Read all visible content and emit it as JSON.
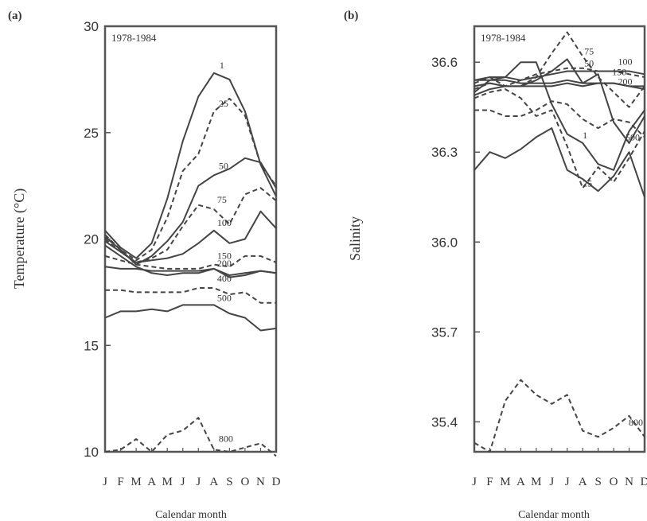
{
  "chart_data": [
    {
      "type": "line",
      "panel_label": "(a)",
      "inset_label": "1978-1984",
      "title": "",
      "xlabel": "Calendar month",
      "ylabel": "Temperature (°C)",
      "categories": [
        "J",
        "F",
        "M",
        "A",
        "M",
        "J",
        "J",
        "A",
        "S",
        "O",
        "N",
        "D"
      ],
      "yticks": [
        "10",
        "15",
        "20",
        "25",
        "30"
      ],
      "ylim": [
        10,
        30
      ],
      "series": [
        {
          "name": "1",
          "dashed": false,
          "values": [
            20.4,
            19.6,
            19.1,
            19.8,
            21.9,
            24.6,
            26.7,
            27.8,
            27.5,
            26.0,
            23.5,
            22.0
          ]
        },
        {
          "name": "25",
          "dashed": true,
          "values": [
            20.2,
            19.5,
            19.0,
            19.5,
            21.0,
            23.2,
            24.0,
            26.0,
            26.6,
            25.8,
            23.5,
            22.5
          ]
        },
        {
          "name": "50",
          "dashed": false,
          "values": [
            20.1,
            19.5,
            18.8,
            19.2,
            19.9,
            20.8,
            22.5,
            23.0,
            23.3,
            23.8,
            23.6,
            22.4
          ]
        },
        {
          "name": "75",
          "dashed": true,
          "values": [
            20.0,
            19.4,
            18.9,
            19.1,
            19.5,
            20.6,
            21.6,
            21.4,
            20.7,
            22.1,
            22.4,
            21.8
          ]
        },
        {
          "name": "100",
          "dashed": false,
          "values": [
            19.9,
            19.4,
            18.9,
            19.0,
            19.1,
            19.3,
            19.8,
            20.4,
            19.8,
            20.0,
            21.3,
            20.5
          ]
        },
        {
          "name": "150",
          "dashed": true,
          "values": [
            19.2,
            19.0,
            18.8,
            18.7,
            18.6,
            18.6,
            18.6,
            18.8,
            18.7,
            19.2,
            19.2,
            18.9
          ]
        },
        {
          "name": "200",
          "dashed": false,
          "values": [
            19.7,
            19.2,
            18.7,
            18.4,
            18.3,
            18.4,
            18.4,
            18.6,
            18.2,
            18.3,
            18.5,
            18.4
          ]
        },
        {
          "name": "",
          "dashed": false,
          "values": [
            18.7,
            18.6,
            18.6,
            18.5,
            18.5,
            18.5,
            18.5,
            18.6,
            18.3,
            18.4,
            18.5,
            18.4
          ]
        },
        {
          "name": "400",
          "dashed": true,
          "values": [
            17.6,
            17.6,
            17.5,
            17.5,
            17.5,
            17.5,
            17.7,
            17.7,
            17.4,
            17.5,
            17.0,
            17.0
          ]
        },
        {
          "name": "500",
          "dashed": false,
          "values": [
            16.3,
            16.6,
            16.6,
            16.7,
            16.6,
            16.9,
            16.9,
            16.9,
            16.5,
            16.3,
            15.7,
            15.8
          ]
        },
        {
          "name": "800",
          "dashed": true,
          "values": [
            10.0,
            10.1,
            10.6,
            10.0,
            10.8,
            11.0,
            11.6,
            10.1,
            10.0,
            10.2,
            10.4,
            9.8
          ]
        }
      ]
    },
    {
      "type": "line",
      "panel_label": "(b)",
      "inset_label": "1978-1984",
      "title": "",
      "xlabel": "Calendar month",
      "ylabel": "Salinity",
      "categories": [
        "J",
        "F",
        "M",
        "A",
        "M",
        "J",
        "J",
        "A",
        "S",
        "O",
        "N",
        "D"
      ],
      "yticks": [
        "35.4",
        "35.7",
        "36.0",
        "36.3",
        "36.6"
      ],
      "ylim": [
        35.3,
        36.72
      ],
      "series": [
        {
          "name": "75",
          "dashed": true,
          "values": [
            36.51,
            36.53,
            36.52,
            36.52,
            36.55,
            36.63,
            36.7,
            36.62,
            36.55,
            36.5,
            36.45,
            36.52
          ]
        },
        {
          "name": "50",
          "dashed": true,
          "values": [
            36.53,
            36.55,
            36.52,
            36.54,
            36.56,
            36.57,
            36.58,
            36.58,
            36.57,
            36.57,
            36.56,
            36.55
          ]
        },
        {
          "name": "100",
          "dashed": false,
          "values": [
            36.54,
            36.55,
            36.55,
            36.54,
            36.55,
            36.56,
            36.57,
            36.57,
            36.57,
            36.57,
            36.57,
            36.56
          ]
        },
        {
          "name": "150",
          "dashed": false,
          "values": [
            36.54,
            36.54,
            36.54,
            36.53,
            36.53,
            36.53,
            36.54,
            36.53,
            36.53,
            36.53,
            36.52,
            36.51
          ]
        },
        {
          "name": "200",
          "dashed": false,
          "values": [
            36.52,
            36.53,
            36.52,
            36.52,
            36.52,
            36.52,
            36.53,
            36.52,
            36.53,
            36.53,
            36.52,
            36.52
          ]
        },
        {
          "name": "1",
          "dashed": false,
          "values": [
            36.5,
            36.54,
            36.55,
            36.6,
            36.6,
            36.46,
            36.36,
            36.33,
            36.26,
            36.24,
            36.37,
            36.44
          ]
        },
        {
          "name": "",
          "dashed": false,
          "values": [
            36.49,
            36.51,
            36.52,
            36.52,
            36.54,
            36.57,
            36.61,
            36.53,
            36.56,
            36.4,
            36.33,
            36.42
          ]
        },
        {
          "name": "25",
          "dashed": true,
          "values": [
            36.48,
            36.5,
            36.51,
            36.48,
            36.42,
            36.44,
            36.32,
            36.18,
            36.25,
            36.2,
            36.28,
            36.37
          ]
        },
        {
          "name": "500",
          "dashed": true,
          "values": [
            36.44,
            36.44,
            36.42,
            36.42,
            36.44,
            36.47,
            36.46,
            36.41,
            36.38,
            36.41,
            36.4,
            36.35
          ]
        },
        {
          "name": "",
          "dashed": false,
          "values": [
            36.24,
            36.3,
            36.28,
            36.31,
            36.35,
            36.38,
            36.24,
            36.21,
            36.17,
            36.22,
            36.3,
            36.15
          ]
        },
        {
          "name": "800",
          "dashed": true,
          "values": [
            35.33,
            35.3,
            35.47,
            35.54,
            35.49,
            35.46,
            35.49,
            35.37,
            35.35,
            35.38,
            35.42,
            35.35
          ]
        }
      ]
    }
  ]
}
